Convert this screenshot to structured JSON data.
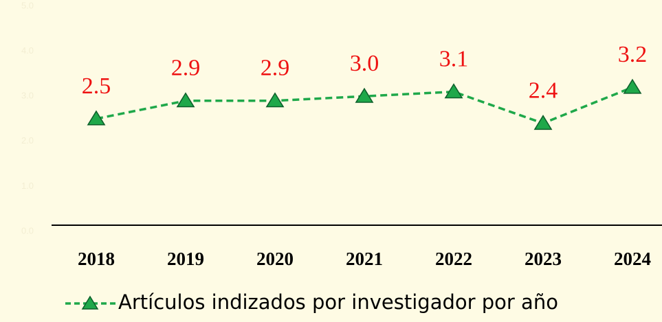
{
  "chart_data": {
    "type": "line",
    "categories": [
      "2018",
      "2019",
      "2020",
      "2021",
      "2022",
      "2023",
      "2024"
    ],
    "series": [
      {
        "name": "Artículos indizados por investigador por año",
        "color": "#1fa84a",
        "values": [
          2.5,
          2.9,
          2.9,
          3.0,
          3.1,
          2.4,
          3.2
        ],
        "value_labels": [
          "2.5",
          "2.9",
          "2.9",
          "3.0",
          "3.1",
          "2.4",
          "3.2"
        ],
        "label_color": "#ee1111"
      }
    ],
    "ylim": [
      0,
      5
    ],
    "yticks": [
      {
        "value": 0,
        "label": "0.0"
      },
      {
        "value": 1,
        "label": "1.0"
      },
      {
        "value": 2,
        "label": "2.0"
      },
      {
        "value": 3,
        "label": "3.0"
      },
      {
        "value": 4,
        "label": "4.0"
      },
      {
        "value": 5,
        "label": "5.0"
      }
    ],
    "grid": false,
    "legend": "bottom"
  }
}
